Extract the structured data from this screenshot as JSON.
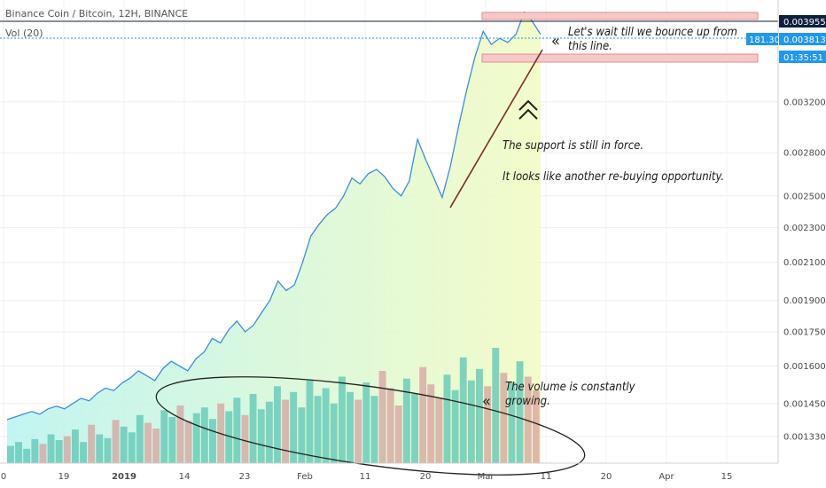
{
  "chart_data": {
    "type": "line",
    "title": "Binance Coin / Bitcoin, 12H, BINANCE",
    "indicator": "Vol (20)",
    "y_scale": "log",
    "ylim": [
      0.00124,
      0.00418
    ],
    "y_ticks": [
      "0.0013300",
      "0.0014500",
      "0.0016000",
      "0.0017500",
      "0.0019000",
      "0.0021000",
      "0.0023000",
      "0.0025000",
      "0.0028000",
      "0.0032000"
    ],
    "x_ticks": [
      "0",
      "19",
      "2019",
      "14",
      "23",
      "Feb",
      "11",
      "20",
      "Mar",
      "11",
      "20",
      "Apr",
      "15"
    ],
    "price_badge": "0.0039550",
    "percent_badge": "181.30%",
    "price_badge_2": "0.0038136",
    "countdown_badge": "01:35:51",
    "colors": {
      "price_line": "#3a8fdd",
      "badge_blue": "#2196f3",
      "badge_dark": "#0d1f3c",
      "volume_up": "#63c9b8",
      "volume_down": "#d7a7a3",
      "resistance_box": "#f5c1c1",
      "support_line": "#7a2b2b"
    },
    "price_series": [
      0.00139,
      0.0014,
      0.00141,
      0.00142,
      0.00141,
      0.00143,
      0.00144,
      0.00143,
      0.00145,
      0.00147,
      0.00146,
      0.00149,
      0.00151,
      0.0015,
      0.00153,
      0.00155,
      0.00158,
      0.00156,
      0.00154,
      0.00159,
      0.00162,
      0.0016,
      0.00158,
      0.00163,
      0.00166,
      0.00172,
      0.0017,
      0.00176,
      0.0018,
      0.00175,
      0.00178,
      0.00184,
      0.0019,
      0.002,
      0.00195,
      0.00198,
      0.0021,
      0.00225,
      0.00232,
      0.00238,
      0.00242,
      0.0025,
      0.00262,
      0.00258,
      0.00265,
      0.00268,
      0.00263,
      0.00255,
      0.0025,
      0.0026,
      0.0029,
      0.00275,
      0.00262,
      0.00249,
      0.0027,
      0.003,
      0.0033,
      0.0036,
      0.00385,
      0.00372,
      0.00378,
      0.00374,
      0.00382,
      0.00405,
      0.00395,
      0.00382
    ],
    "volume_series": [
      18,
      22,
      15,
      25,
      20,
      30,
      24,
      28,
      35,
      22,
      40,
      30,
      26,
      45,
      38,
      32,
      50,
      42,
      36,
      55,
      48,
      60,
      44,
      52,
      58,
      46,
      62,
      54,
      68,
      50,
      72,
      56,
      64,
      80,
      66,
      74,
      58,
      86,
      70,
      78,
      62,
      90,
      74,
      66,
      84,
      70,
      96,
      78,
      60,
      88,
      72,
      100,
      82,
      68,
      92,
      76,
      110,
      86,
      98,
      80,
      120,
      94,
      84,
      106,
      90,
      76
    ],
    "annotations": [
      "Let's wait till we bounce up from this line.",
      "The support is still in force.",
      "It looks like another re-buying opportunity.",
      "The volume is constantly growing."
    ]
  }
}
